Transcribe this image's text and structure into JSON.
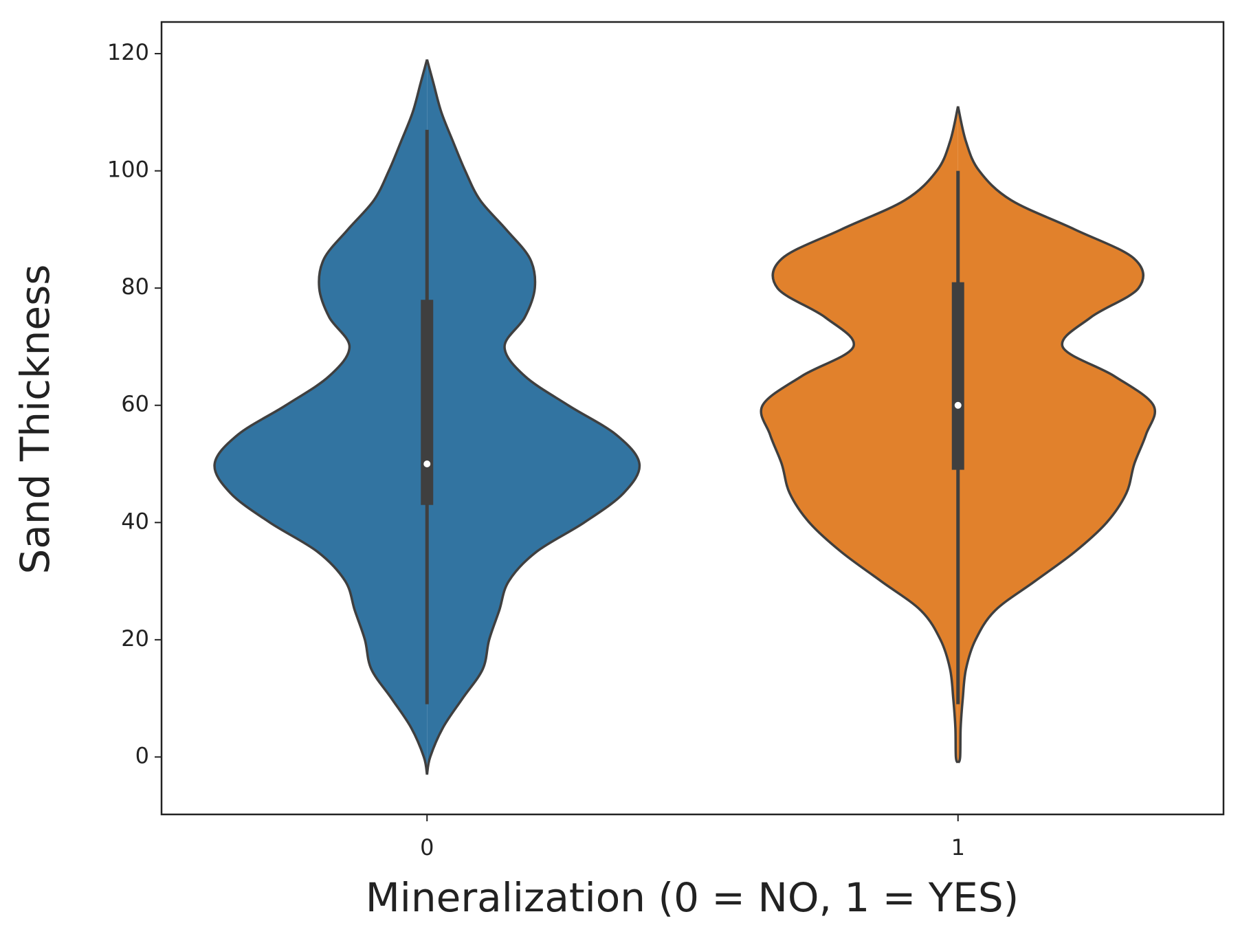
{
  "chart_data": {
    "type": "violin",
    "xlabel": "Mineralization (0 = NO, 1 = YES)",
    "ylabel": "Sand Thickness",
    "categories": [
      "0",
      "1"
    ],
    "xlim": [
      -0.5,
      1.5
    ],
    "ylim": [
      -9.8,
      125.4
    ],
    "yticks": [
      0,
      20,
      40,
      60,
      80,
      100,
      120
    ],
    "grid": false,
    "violins": [
      {
        "color": "#3274a1",
        "y": [
          -3,
          0,
          5,
          10,
          15,
          20,
          25,
          30,
          35,
          40,
          45,
          50,
          55,
          60,
          65,
          70,
          75,
          80,
          85,
          90,
          95,
          100,
          105,
          110,
          115,
          119
        ],
        "width": [
          0,
          0.006,
          0.03,
          0.067,
          0.105,
          0.117,
          0.136,
          0.154,
          0.206,
          0.296,
          0.37,
          0.4,
          0.356,
          0.266,
          0.184,
          0.146,
          0.184,
          0.203,
          0.194,
          0.149,
          0.1,
          0.072,
          0.049,
          0.027,
          0.012,
          0
        ],
        "whisker_low": 9,
        "q1": 43,
        "median": 50,
        "q3": 78,
        "whisker_high": 107
      },
      {
        "color": "#e1812c",
        "y": [
          -1,
          0,
          5,
          10,
          15,
          20,
          25,
          30,
          35,
          40,
          45,
          50,
          55,
          60,
          65,
          70,
          75,
          80,
          85,
          90,
          95,
          100,
          105,
          111
        ],
        "width": [
          0,
          0.004,
          0.005,
          0.009,
          0.015,
          0.033,
          0.07,
          0.145,
          0.22,
          0.28,
          0.317,
          0.332,
          0.354,
          0.368,
          0.294,
          0.197,
          0.25,
          0.34,
          0.332,
          0.22,
          0.1,
          0.04,
          0.015,
          0
        ],
        "whisker_low": 9,
        "q1": 49,
        "median": 60,
        "q3": 81,
        "whisker_high": 100
      }
    ]
  }
}
